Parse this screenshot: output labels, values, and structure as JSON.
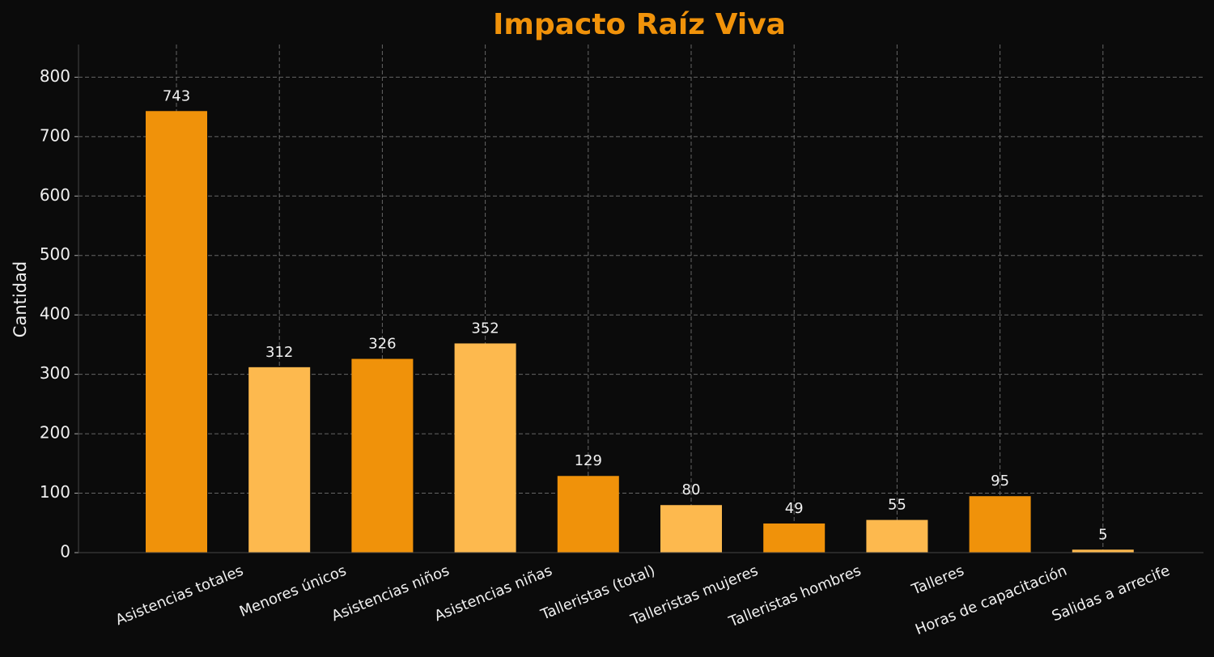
{
  "chart_data": {
    "type": "bar",
    "title": "Impacto Raíz Viva",
    "y_label": "Cantidad",
    "categories": [
      "Asistencias totales",
      "Menores únicos",
      "Asistencias niños",
      "Asistencias niñas",
      "Talleristas (total)",
      "Talleristas mujeres",
      "Talleristas hombres",
      "Talleres",
      "Horas de capacitación",
      "Salidas a arrecife"
    ],
    "values": [
      743,
      312,
      326,
      352,
      129,
      80,
      49,
      55,
      95,
      5
    ],
    "colors": [
      "#f0920a",
      "#fdb94e",
      "#f0920a",
      "#fdb94e",
      "#f0920a",
      "#fdb94e",
      "#f0920a",
      "#fdb94e",
      "#f0920a",
      "#fdb94e"
    ],
    "ylim": [
      0,
      855
    ],
    "yticks": [
      0,
      100,
      200,
      300,
      400,
      500,
      600,
      700,
      800
    ],
    "grid": true
  }
}
